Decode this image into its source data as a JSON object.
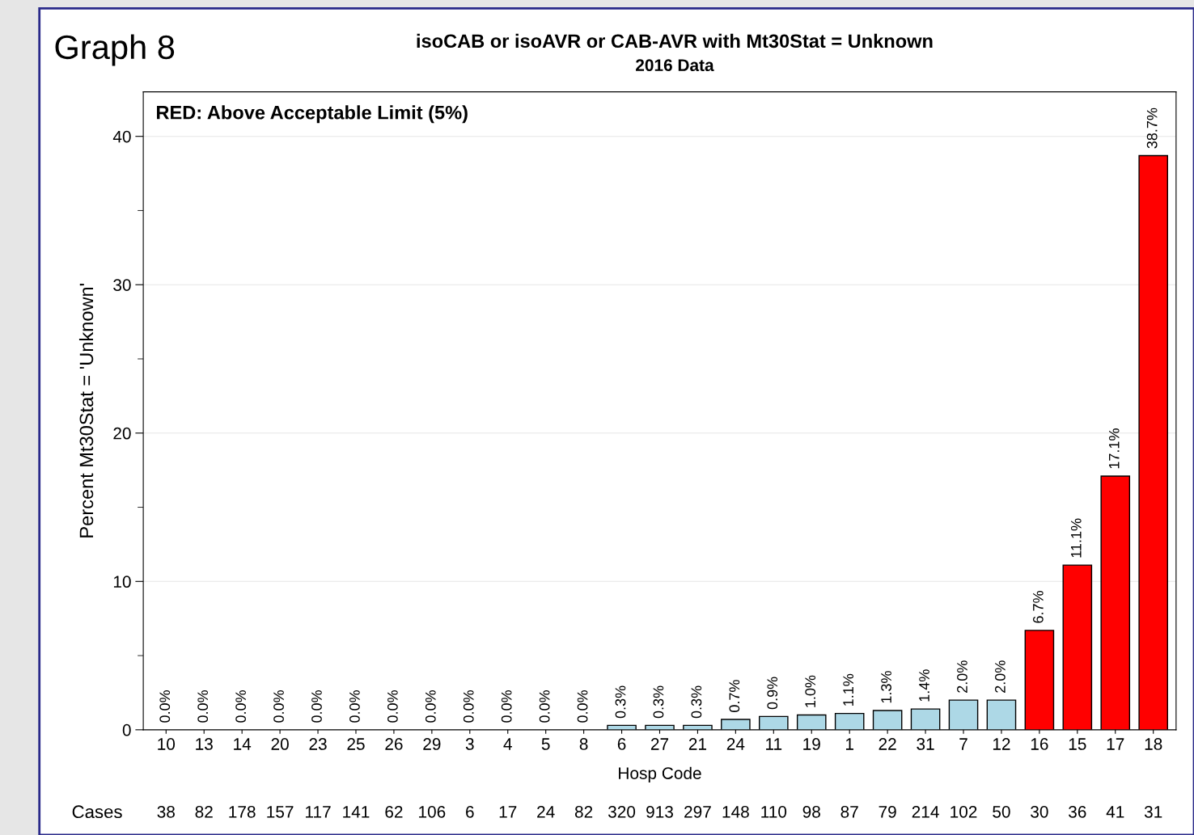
{
  "chart_data": {
    "type": "bar",
    "title": "isoCAB or isoAVR or CAB-AVR with Mt30Stat = Unknown",
    "subtitle": "2016 Data",
    "xlabel": "Hosp Code",
    "ylabel": "Percent Mt30Stat = 'Unknown'",
    "categories": [
      "10",
      "13",
      "14",
      "20",
      "23",
      "25",
      "26",
      "29",
      "3",
      "4",
      "5",
      "8",
      "6",
      "27",
      "21",
      "24",
      "11",
      "19",
      "1",
      "22",
      "31",
      "7",
      "12",
      "16",
      "15",
      "17",
      "18"
    ],
    "values": [
      0,
      0,
      0,
      0,
      0,
      0,
      0,
      0,
      0,
      0,
      0,
      0,
      0.3,
      0.3,
      0.3,
      0.7,
      0.9,
      1.0,
      1.1,
      1.3,
      1.4,
      2.0,
      2.0,
      6.7,
      11.1,
      17.1,
      38.7
    ],
    "value_labels": [
      "0.0%",
      "0.0%",
      "0.0%",
      "0.0%",
      "0.0%",
      "0.0%",
      "0.0%",
      "0.0%",
      "0.0%",
      "0.0%",
      "0.0%",
      "0.0%",
      "0.3%",
      "0.3%",
      "0.3%",
      "0.7%",
      "0.9%",
      "1.0%",
      "1.1%",
      "1.3%",
      "1.4%",
      "2.0%",
      "2.0%",
      "6.7%",
      "11.1%",
      "17.1%",
      "38.7%"
    ],
    "colors": [
      "#add8e6",
      "#add8e6",
      "#add8e6",
      "#add8e6",
      "#add8e6",
      "#add8e6",
      "#add8e6",
      "#add8e6",
      "#add8e6",
      "#add8e6",
      "#add8e6",
      "#add8e6",
      "#add8e6",
      "#add8e6",
      "#add8e6",
      "#add8e6",
      "#add8e6",
      "#add8e6",
      "#add8e6",
      "#add8e6",
      "#add8e6",
      "#add8e6",
      "#add8e6",
      "#ff0000",
      "#ff0000",
      "#ff0000",
      "#ff0000"
    ],
    "ylim": [
      0,
      43
    ],
    "yticks": [
      0,
      {
        "value": 5,
        "label": null
      },
      10,
      {
        "value": 15,
        "label": null
      },
      20,
      {
        "value": 25,
        "label": null
      },
      30,
      {
        "value": 35,
        "label": null
      },
      40
    ],
    "grid": "y",
    "annotations": [
      "Graph 8",
      "RED: Above Acceptable Limit (5%)",
      "Cases",
      "38",
      "82",
      "178",
      "157",
      "117",
      "141",
      "62",
      "106",
      "6",
      "17",
      "24",
      "82",
      "320",
      "913",
      "297",
      "148",
      "110",
      "98",
      "87",
      "79",
      "214",
      "102",
      "50",
      "30",
      "36",
      "41",
      "31"
    ]
  }
}
